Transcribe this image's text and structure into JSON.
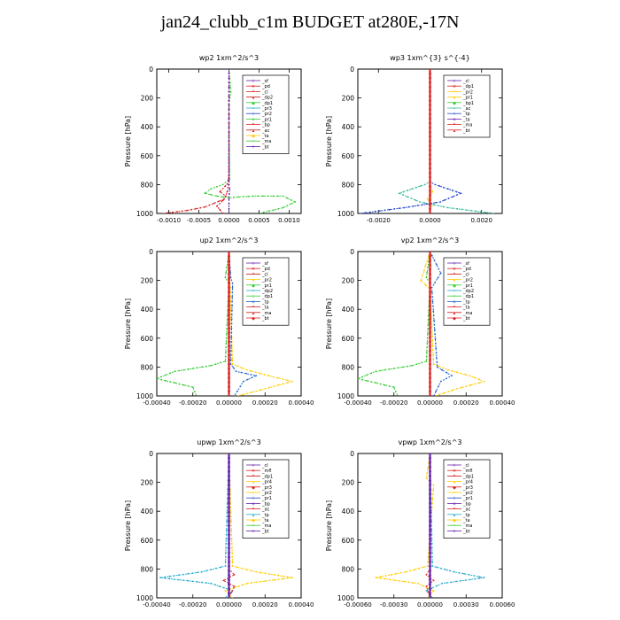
{
  "page_title": "jan24_clubb_c1m  BUDGET at280E,-17N",
  "chart_data": [
    {
      "type": "line",
      "title": "wp2   1xm^2/s^3",
      "ylabel": "Pressure  [hPa]",
      "ylim": [
        1000,
        0
      ],
      "yticks": [
        0,
        200,
        400,
        600,
        800,
        1000
      ],
      "ytick_labels": [
        "0",
        "200",
        "400",
        "600",
        "800",
        "1000"
      ],
      "xlim": [
        -0.0012,
        0.0012
      ],
      "xticks": [
        -0.001,
        -0.0005,
        0,
        0.0005,
        0.001
      ],
      "xtick_labels": [
        "-0.0010",
        "-0.0005",
        "0.0000",
        "0.0005",
        "0.0010"
      ],
      "legend": {
        "placement": "top-right",
        "entries": [
          "_sf",
          "_pd",
          "_cl",
          "_dp2",
          "_dp1",
          "_pr3",
          "_pr2",
          "_pr1",
          "_bp",
          "_ac",
          "_ta",
          "_ma",
          "_bt"
        ]
      },
      "series": [
        {
          "name": "_cl",
          "color": "#dd2222",
          "x": [
            0,
            0,
            -1e-05,
            -3e-05,
            -8e-05,
            -0.00025,
            -0.0004,
            -0.0007,
            -0.0011
          ],
          "y": [
            0,
            700,
            800,
            850,
            900,
            930,
            955,
            980,
            1000
          ]
        },
        {
          "name": "_dp2",
          "color": "#cc1111",
          "x": [
            0,
            0,
            -6e-05,
            -0.00015,
            -5e-05,
            -0.0001,
            -0.0002,
            -0.0001
          ],
          "y": [
            0,
            780,
            810,
            850,
            880,
            910,
            950,
            1000
          ]
        },
        {
          "name": "_pr1",
          "color": "#33cc33",
          "x": [
            0,
            3e-05,
            0,
            1e-05,
            -0.0001,
            -0.0003,
            -0.0004,
            -0.0002,
            0,
            0.0004,
            0.0009,
            0.0011,
            0.0009,
            0.0005
          ],
          "y": [
            0,
            160,
            240,
            760,
            800,
            830,
            860,
            880,
            890,
            880,
            880,
            920,
            960,
            1000
          ]
        },
        {
          "name": "_bt",
          "color": "#6622aa",
          "x": [
            0,
            0,
            1e-05,
            0,
            0
          ],
          "y": [
            0,
            800,
            830,
            900,
            1000
          ]
        }
      ]
    },
    {
      "type": "line",
      "title": "wp3   1xm^{3} s^{-4}",
      "ylabel": "Pressure  [hPa]",
      "ylim": [
        1000,
        0
      ],
      "yticks": [
        0,
        200,
        400,
        600,
        800,
        1000
      ],
      "ytick_labels": [
        "0",
        "200",
        "400",
        "600",
        "800",
        "1000"
      ],
      "xlim": [
        -0.0028,
        0.0028
      ],
      "xticks": [
        -0.002,
        0,
        0.002
      ],
      "xtick_labels": [
        "-0.0020",
        "0.0000",
        "0.0020"
      ],
      "legend": {
        "placement": "top-right",
        "entries": [
          "_cl",
          "_dp1",
          "_pr2",
          "_pr1",
          "_bp1",
          "_ac",
          "_tp",
          "_ta",
          "_ma",
          "_bt"
        ]
      },
      "series": [
        {
          "name": "_ac",
          "color": "#33bb99",
          "x": [
            0,
            0,
            -0.0002,
            -0.0012,
            -0.0004,
            0.0007,
            0.0025
          ],
          "y": [
            0,
            780,
            800,
            860,
            920,
            960,
            1000
          ]
        },
        {
          "name": "_tp",
          "color": "#2244cc",
          "x": [
            0,
            0,
            0.0002,
            0.0012,
            0.0004,
            -0.001,
            -0.0027
          ],
          "y": [
            0,
            780,
            800,
            860,
            920,
            960,
            1000
          ]
        },
        {
          "name": "_pr2",
          "color": "#ffcc00",
          "x": [
            0,
            0,
            0.0001,
            -0.0001,
            0.0001
          ],
          "y": [
            0,
            800,
            850,
            900,
            960
          ]
        },
        {
          "name": "_bt",
          "color": "#dd2222",
          "x": [
            0,
            0,
            0
          ],
          "y": [
            0,
            500,
            1000
          ]
        }
      ]
    },
    {
      "type": "line",
      "title": "up2   1xm^2/s^3",
      "ylabel": "Pressure  [hPa]",
      "ylim": [
        1000,
        0
      ],
      "yticks": [
        0,
        200,
        400,
        600,
        800,
        1000
      ],
      "ytick_labels": [
        "0",
        "200",
        "400",
        "600",
        "800",
        "1000"
      ],
      "xlim": [
        -0.0004,
        0.0004
      ],
      "xticks": [
        -0.0004,
        -0.0002,
        0,
        0.0002,
        0.0004
      ],
      "xtick_labels": [
        "-0.00040",
        "-0.00020",
        "0.00000",
        "0.00020",
        "0.00040"
      ],
      "legend": {
        "placement": "top-right",
        "entries": [
          "_sf",
          "_pd",
          "_cl",
          "_pr2",
          "_pr1",
          "_dp2",
          "_dp1",
          "_tp",
          "_ta",
          "_ma",
          "_bt"
        ]
      },
      "series": [
        {
          "name": "_pr2",
          "color": "#ffcc00",
          "x": [
            0,
            2e-05,
            0.0001,
            0.00022,
            0.00035,
            0.0002,
            5e-05
          ],
          "y": [
            0,
            780,
            820,
            860,
            900,
            950,
            1000
          ]
        },
        {
          "name": "_dp1",
          "color": "#33cc33",
          "x": [
            0,
            -2e-05,
            0,
            -2e-05,
            -0.0001,
            -0.0003,
            -0.0004,
            -0.0002,
            -0.00018
          ],
          "y": [
            0,
            180,
            220,
            760,
            790,
            830,
            880,
            940,
            1000
          ]
        },
        {
          "name": "_tp",
          "color": "#2266cc",
          "x": [
            0,
            1e-05,
            2e-05,
            1e-05,
            4e-05,
            0.00015,
            8e-05,
            3e-05
          ],
          "y": [
            0,
            180,
            220,
            780,
            830,
            860,
            900,
            1000
          ]
        },
        {
          "name": "_bt",
          "color": "#dd2222",
          "x": [
            0,
            0,
            0
          ],
          "y": [
            0,
            500,
            1000
          ]
        }
      ]
    },
    {
      "type": "line",
      "title": "vp2   1xm^2/s^3",
      "ylabel": "Pressure  [hPa]",
      "ylim": [
        1000,
        0
      ],
      "yticks": [
        0,
        200,
        400,
        600,
        800,
        1000
      ],
      "ytick_labels": [
        "0",
        "200",
        "400",
        "600",
        "800",
        "1000"
      ],
      "xlim": [
        -0.0004,
        0.0004
      ],
      "xticks": [
        -0.0004,
        -0.0002,
        0,
        0.0002,
        0.0004
      ],
      "xtick_labels": [
        "-0.00040",
        "-0.00020",
        "0.00000",
        "0.00020",
        "0.00040"
      ],
      "legend": {
        "placement": "top-right",
        "entries": [
          "_sf",
          "_pd",
          "_cl",
          "_pr2",
          "_pr1",
          "_dp2",
          "_dp1",
          "_tp",
          "_ta",
          "_ma",
          "_bt"
        ]
      },
      "series": [
        {
          "name": "_pr2",
          "color": "#ffcc00",
          "x": [
            0,
            -5e-05,
            0,
            2e-05,
            0.0001,
            0.00022,
            0.0003,
            0.00015,
            3e-05
          ],
          "y": [
            0,
            200,
            260,
            780,
            820,
            860,
            900,
            950,
            1000
          ]
        },
        {
          "name": "_dp1",
          "color": "#33cc33",
          "x": [
            0,
            -2e-05,
            0,
            -2e-05,
            -0.0001,
            -0.0003,
            -0.0004,
            -0.0002,
            -0.00018
          ],
          "y": [
            0,
            180,
            220,
            760,
            790,
            830,
            880,
            940,
            1000
          ]
        },
        {
          "name": "_tp",
          "color": "#2266cc",
          "x": [
            0,
            6e-05,
            1e-05,
            4e-05,
            0.00012,
            6e-05,
            2e-05
          ],
          "y": [
            0,
            150,
            250,
            800,
            860,
            900,
            1000
          ]
        },
        {
          "name": "_bt",
          "color": "#dd2222",
          "x": [
            0,
            0,
            0
          ],
          "y": [
            0,
            500,
            1000
          ]
        }
      ]
    },
    {
      "type": "line",
      "title": "upwp   1xm^2/s^3",
      "ylabel": "Pressure  [hPa]",
      "ylim": [
        1000,
        0
      ],
      "yticks": [
        0,
        200,
        400,
        600,
        800,
        1000
      ],
      "ytick_labels": [
        "0",
        "200",
        "400",
        "600",
        "800",
        "1000"
      ],
      "xlim": [
        -0.0004,
        0.0004
      ],
      "xticks": [
        -0.0004,
        -0.0002,
        0,
        0.0002,
        0.0004
      ],
      "xtick_labels": [
        "-0.00040",
        "-0.00020",
        "0.00000",
        "0.00020",
        "0.00040"
      ],
      "legend": {
        "placement": "top-right",
        "entries": [
          "_cl",
          "_mfl",
          "_dp1",
          "_pr4",
          "_pr3",
          "_pr2",
          "_pr1",
          "_bp",
          "_ac",
          "_tp",
          "_ta",
          "_ma",
          "_bt"
        ]
      },
      "series": [
        {
          "name": "_pr2",
          "color": "#ffcc00",
          "x": [
            0,
            2e-05,
            0.00015,
            0.00035,
            0.0001,
            -2e-05,
            2e-05
          ],
          "y": [
            0,
            780,
            820,
            860,
            900,
            950,
            1000
          ]
        },
        {
          "name": "_tp",
          "color": "#22aacc",
          "x": [
            0,
            -2e-05,
            -0.00015,
            -0.00038,
            -0.0001,
            2e-05,
            -2e-05
          ],
          "y": [
            0,
            780,
            820,
            860,
            900,
            950,
            1000
          ]
        },
        {
          "name": "_pr3",
          "color": "#dd2222",
          "x": [
            0,
            0,
            3e-05,
            -3e-05,
            3e-05,
            0
          ],
          "y": [
            0,
            800,
            840,
            880,
            920,
            1000
          ]
        },
        {
          "name": "_bt",
          "color": "#6622aa",
          "x": [
            0,
            0,
            0
          ],
          "y": [
            0,
            500,
            1000
          ]
        }
      ]
    },
    {
      "type": "line",
      "title": "vpwp   1xm^2/s^3",
      "ylabel": "Pressure  [hPa]",
      "ylim": [
        1000,
        0
      ],
      "yticks": [
        0,
        200,
        400,
        600,
        800,
        1000
      ],
      "ytick_labels": [
        "0",
        "200",
        "400",
        "600",
        "800",
        "1000"
      ],
      "xlim": [
        -0.0006,
        0.0006
      ],
      "xticks": [
        -0.0006,
        -0.0003,
        0,
        0.0003,
        0.0006
      ],
      "xtick_labels": [
        "-0.00060",
        "-0.00030",
        "0.00000",
        "0.00030",
        "0.00060"
      ],
      "legend": {
        "placement": "top-right",
        "entries": [
          "_cl",
          "_mfl",
          "_dp1",
          "_pr4",
          "_pr3",
          "_pr2",
          "_pr1",
          "_bp",
          "_ac",
          "_tp",
          "_ta",
          "_ma",
          "_bt"
        ]
      },
      "series": [
        {
          "name": "_pr2",
          "color": "#ffcc00",
          "x": [
            0,
            -3e-05,
            3e-05,
            -2e-05,
            -0.0002,
            -0.00045,
            -0.0001,
            3e-05,
            -2e-05
          ],
          "y": [
            0,
            170,
            220,
            780,
            820,
            860,
            900,
            950,
            1000
          ]
        },
        {
          "name": "_tp",
          "color": "#22aacc",
          "x": [
            0,
            2e-05,
            0.0002,
            0.00045,
            0.0001,
            -3e-05,
            2e-05
          ],
          "y": [
            0,
            780,
            820,
            860,
            900,
            950,
            1000
          ]
        },
        {
          "name": "_pr3",
          "color": "#dd2222",
          "x": [
            0,
            0,
            -3e-05,
            3e-05,
            -3e-05,
            0
          ],
          "y": [
            0,
            800,
            840,
            880,
            920,
            1000
          ]
        },
        {
          "name": "_bt",
          "color": "#6622aa",
          "x": [
            0,
            0,
            0
          ],
          "y": [
            0,
            500,
            1000
          ]
        }
      ]
    }
  ]
}
